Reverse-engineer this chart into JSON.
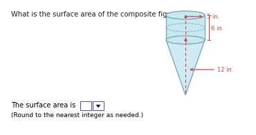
{
  "title": "What is the surface area of the composite figure?",
  "label_5": "5 in.",
  "label_6": "6 in.",
  "label_12": "12 in.",
  "answer_text": "The surface area is",
  "round_text": "(Round to the nearest integer as needed.)",
  "bg_color": "#ffffff",
  "cylinder_fill": "#c8e8f0",
  "cylinder_edge": "#7aaabb",
  "cone_fill": "#d0eaf5",
  "cone_edge": "#7aaabb",
  "dashed_color": "#cc4444",
  "arrow_color": "#cc4444",
  "label_color": "#cc4444",
  "text_color": "#000000",
  "title_color": "#222222",
  "box_edge": "#5555aa",
  "dropdown_arrow": "#111111"
}
